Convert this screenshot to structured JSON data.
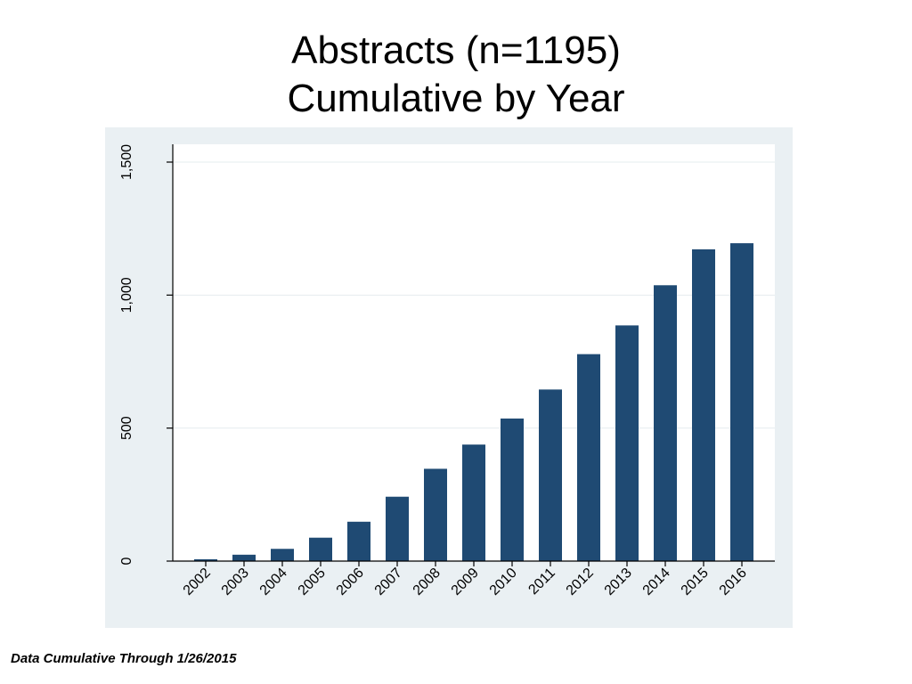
{
  "title_lines": [
    "Abstracts (n=1195)",
    "Cumulative by Year"
  ],
  "footnote": "Data Cumulative Through 1/26/2015",
  "colors": {
    "bar": "#1f4a73",
    "outer_background": "#eaf0f3",
    "plot_background": "#ffffff",
    "gridline": "#e6ecef",
    "axis": "#000000"
  },
  "chart_data": {
    "type": "bar",
    "title": "Abstracts (n=1195) Cumulative by Year",
    "xlabel": "",
    "ylabel": "",
    "categories": [
      "2002",
      "2003",
      "2004",
      "2005",
      "2006",
      "2007",
      "2008",
      "2009",
      "2010",
      "2011",
      "2012",
      "2013",
      "2014",
      "2015",
      "2016"
    ],
    "values": [
      7,
      24,
      46,
      88,
      148,
      242,
      347,
      438,
      536,
      645,
      778,
      886,
      1037,
      1172,
      1195
    ],
    "ylim": [
      0,
      1500
    ],
    "yticks": [
      0,
      500,
      1000,
      1500
    ],
    "ytick_labels": [
      "0",
      "500",
      "1,000",
      "1,500"
    ],
    "grid": true,
    "legend": "none"
  }
}
